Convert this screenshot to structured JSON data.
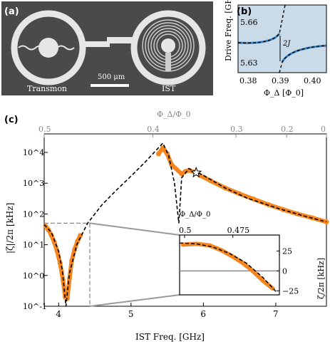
{
  "panel_a": {
    "label": "(a)",
    "left_device_label": "Transmon",
    "right_device_label": "IST",
    "scale_bar_label": "500 μm"
  },
  "panel_b": {
    "label": "(b)",
    "ylabel": "Drive Freq. [GHz]",
    "xlabel": "Φ_Δ [Φ_0]",
    "gap_label": "2J",
    "xticks": [
      "0.38",
      "0.39",
      "0.40"
    ],
    "yticks": [
      "5.66",
      "5.63"
    ]
  },
  "panel_c": {
    "label": "(c)",
    "xlabel": "IST Freq. [GHz]",
    "ylabel": "|ζ|/2π [kHz]",
    "top_xlabel": "Φ_Δ/Φ_0",
    "xticks": [
      "4",
      "5",
      "6",
      "7"
    ],
    "top_xticks": [
      "0.5",
      "0.4",
      "0.3",
      "0.2",
      "0"
    ],
    "yticks": [
      "10^4",
      "10^3",
      "10^2",
      "10^1",
      "10^0",
      "10^-1"
    ],
    "inset": {
      "top_xlabel": "Φ_Δ/Φ_0",
      "top_xticks": [
        "0.5",
        "0.475"
      ],
      "ylabel": "ζ/2π [kHz]",
      "yticks": [
        "25",
        "0",
        "−25"
      ]
    }
  },
  "chart_data": [
    {
      "type": "scatter",
      "panel": "c",
      "xlabel": "IST Freq. [GHz]",
      "ylabel": "|ζ|/2π [kHz]",
      "yscale": "log",
      "xlim": [
        3.8,
        7.7
      ],
      "ylim": [
        0.1,
        40000
      ],
      "series": [
        {
          "kind": "measured",
          "color": "#f5861f",
          "points": [
            [
              3.82,
              40
            ],
            [
              3.86,
              30
            ],
            [
              3.9,
              20
            ],
            [
              3.94,
              12
            ],
            [
              3.98,
              6
            ],
            [
              4.02,
              2.5
            ],
            [
              4.06,
              0.7
            ],
            [
              4.09,
              0.2
            ],
            [
              4.12,
              0.18
            ],
            [
              4.15,
              0.8
            ],
            [
              4.18,
              3
            ],
            [
              4.22,
              7
            ],
            [
              4.26,
              13
            ],
            [
              4.3,
              20
            ],
            [
              5.38,
              9000
            ],
            [
              5.44,
              14000
            ],
            [
              5.5,
              9000
            ],
            [
              5.56,
              4000
            ],
            [
              5.7,
              2000
            ],
            [
              5.75,
              2400
            ],
            [
              5.8,
              2600
            ],
            [
              5.88,
              2300
            ],
            [
              5.95,
              1800
            ],
            [
              6.1,
              1200
            ],
            [
              6.3,
              700
            ],
            [
              6.5,
              450
            ],
            [
              6.7,
              300
            ],
            [
              6.9,
              200
            ],
            [
              7.1,
              140
            ],
            [
              7.3,
              100
            ],
            [
              7.5,
              75
            ],
            [
              7.7,
              55
            ]
          ]
        },
        {
          "kind": "theory",
          "color": "#000000",
          "points": [
            [
              3.8,
              45
            ],
            [
              3.9,
              25
            ],
            [
              4.0,
              6
            ],
            [
              4.05,
              1.5
            ],
            [
              4.1,
              0.1
            ],
            [
              4.15,
              1.2
            ],
            [
              4.25,
              10
            ],
            [
              4.4,
              50
            ],
            [
              4.6,
              200
            ],
            [
              4.8,
              600
            ],
            [
              5.0,
              1700
            ],
            [
              5.2,
              5000
            ],
            [
              5.35,
              12000
            ],
            [
              5.44,
              20000
            ],
            [
              5.52,
              8000
            ],
            [
              5.6,
              1000
            ],
            [
              5.66,
              50
            ],
            [
              5.7,
              1500
            ],
            [
              5.8,
              3000
            ],
            [
              6.0,
              1800
            ],
            [
              6.3,
              700
            ],
            [
              6.6,
              330
            ],
            [
              7.0,
              160
            ],
            [
              7.4,
              85
            ],
            [
              7.7,
              55
            ]
          ]
        }
      ],
      "marker": {
        "name": "star",
        "x": 5.9,
        "y": 2200
      }
    },
    {
      "type": "scatter",
      "panel": "c-inset",
      "ylabel": "ζ/2π [kHz]",
      "xlim": [
        3.8,
        4.4
      ],
      "ylim": [
        -30,
        45
      ],
      "series": [
        {
          "kind": "measured",
          "color": "#f5861f",
          "points": [
            [
              3.82,
              33
            ],
            [
              3.9,
              34
            ],
            [
              3.98,
              32
            ],
            [
              4.05,
              26
            ],
            [
              4.12,
              18
            ],
            [
              4.18,
              10
            ],
            [
              4.24,
              0
            ],
            [
              4.3,
              -12
            ],
            [
              4.36,
              -22
            ]
          ]
        },
        {
          "kind": "theory",
          "color": "#000000",
          "points": [
            [
              3.8,
              35
            ],
            [
              3.9,
              34
            ],
            [
              4.0,
              30
            ],
            [
              4.1,
              22
            ],
            [
              4.2,
              10
            ],
            [
              4.3,
              -8
            ],
            [
              4.38,
              -26
            ]
          ]
        }
      ]
    }
  ]
}
